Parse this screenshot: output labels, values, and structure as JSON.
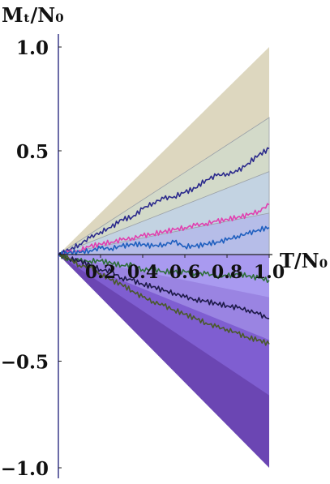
{
  "chart_data": {
    "type": "line",
    "title": "",
    "xlabel": "T/N₀",
    "ylabel": "Mₜ/N₀",
    "xlim": [
      0,
      1.0
    ],
    "ylim": [
      -1.0,
      1.0
    ],
    "x_ticks": [
      "0.2",
      "0.4",
      "0.6",
      "0.8",
      "1.0"
    ],
    "y_ticks": [
      "1.0",
      "0.5",
      "−0.5",
      "−1.0"
    ],
    "grid": false,
    "legend": "none",
    "bands_positive": [
      {
        "bound_at_x1": 1.0,
        "color": "#ddd7bf"
      },
      {
        "bound_at_x1": 0.66,
        "color": "#d3dac9"
      },
      {
        "bound_at_x1": 0.4,
        "color": "#c3d3e2"
      },
      {
        "bound_at_x1": 0.2,
        "color": "#b6bde8"
      }
    ],
    "bands_negative": [
      {
        "bound_at_x1": -1.0,
        "color": "#6b46b3"
      },
      {
        "bound_at_x1": -0.66,
        "color": "#7f5ed1"
      },
      {
        "bound_at_x1": -0.4,
        "color": "#9a84e2"
      },
      {
        "bound_at_x1": -0.2,
        "color": "#a99af0"
      }
    ],
    "series": [
      {
        "color": "#2b2a8c",
        "x": [
          0,
          0.05,
          0.1,
          0.15,
          0.2,
          0.25,
          0.3,
          0.35,
          0.4,
          0.45,
          0.5,
          0.55,
          0.6,
          0.65,
          0.7,
          0.75,
          0.8,
          0.85,
          0.9,
          0.95,
          1.0
        ],
        "y": [
          0,
          0.02,
          0.05,
          0.08,
          0.11,
          0.13,
          0.17,
          0.18,
          0.22,
          0.25,
          0.27,
          0.28,
          0.3,
          0.32,
          0.36,
          0.38,
          0.39,
          0.4,
          0.44,
          0.48,
          0.51
        ]
      },
      {
        "color": "#e040b0",
        "x": [
          0,
          0.05,
          0.1,
          0.15,
          0.2,
          0.25,
          0.3,
          0.35,
          0.4,
          0.45,
          0.5,
          0.55,
          0.6,
          0.65,
          0.7,
          0.75,
          0.8,
          0.85,
          0.9,
          0.95,
          1.0
        ],
        "y": [
          0,
          0.01,
          0.02,
          0.04,
          0.05,
          0.06,
          0.07,
          0.08,
          0.09,
          0.1,
          0.11,
          0.12,
          0.13,
          0.14,
          0.15,
          0.16,
          0.17,
          0.18,
          0.19,
          0.21,
          0.24
        ]
      },
      {
        "color": "#1f5fbf",
        "x": [
          0,
          0.05,
          0.1,
          0.15,
          0.2,
          0.25,
          0.3,
          0.35,
          0.4,
          0.45,
          0.5,
          0.55,
          0.6,
          0.65,
          0.7,
          0.75,
          0.8,
          0.85,
          0.9,
          0.95,
          1.0
        ],
        "y": [
          0,
          0.01,
          0.01,
          0.02,
          0.03,
          0.03,
          0.04,
          0.05,
          0.05,
          0.04,
          0.05,
          0.06,
          0.04,
          0.04,
          0.05,
          0.06,
          0.07,
          0.09,
          0.1,
          0.12,
          0.13
        ]
      },
      {
        "color": "#2e6e3a",
        "x": [
          0,
          0.05,
          0.1,
          0.15,
          0.2,
          0.25,
          0.3,
          0.35,
          0.4,
          0.45,
          0.5,
          0.55,
          0.6,
          0.65,
          0.7,
          0.75,
          0.8,
          0.85,
          0.9,
          0.95,
          1.0
        ],
        "y": [
          0,
          -0.02,
          -0.03,
          -0.03,
          -0.03,
          -0.04,
          -0.05,
          -0.05,
          -0.07,
          -0.07,
          -0.08,
          -0.08,
          -0.08,
          -0.09,
          -0.09,
          -0.1,
          -0.1,
          -0.09,
          -0.1,
          -0.11,
          -0.12
        ]
      },
      {
        "color": "#1e1a4a",
        "x": [
          0,
          0.05,
          0.1,
          0.15,
          0.2,
          0.25,
          0.3,
          0.35,
          0.4,
          0.45,
          0.5,
          0.55,
          0.6,
          0.65,
          0.7,
          0.75,
          0.8,
          0.85,
          0.9,
          0.95,
          1.0
        ],
        "y": [
          0,
          -0.02,
          -0.03,
          -0.05,
          -0.07,
          -0.08,
          -0.11,
          -0.12,
          -0.14,
          -0.15,
          -0.17,
          -0.18,
          -0.2,
          -0.21,
          -0.22,
          -0.23,
          -0.24,
          -0.25,
          -0.26,
          -0.28,
          -0.3
        ]
      },
      {
        "color": "#4a5a2a",
        "x": [
          0,
          0.05,
          0.1,
          0.15,
          0.2,
          0.25,
          0.3,
          0.35,
          0.4,
          0.45,
          0.5,
          0.55,
          0.6,
          0.65,
          0.7,
          0.75,
          0.8,
          0.85,
          0.9,
          0.95,
          1.0
        ],
        "y": [
          0,
          -0.02,
          -0.05,
          -0.06,
          -0.09,
          -0.12,
          -0.14,
          -0.17,
          -0.2,
          -0.22,
          -0.24,
          -0.26,
          -0.28,
          -0.3,
          -0.32,
          -0.34,
          -0.35,
          -0.37,
          -0.39,
          -0.4,
          -0.42
        ]
      }
    ]
  }
}
